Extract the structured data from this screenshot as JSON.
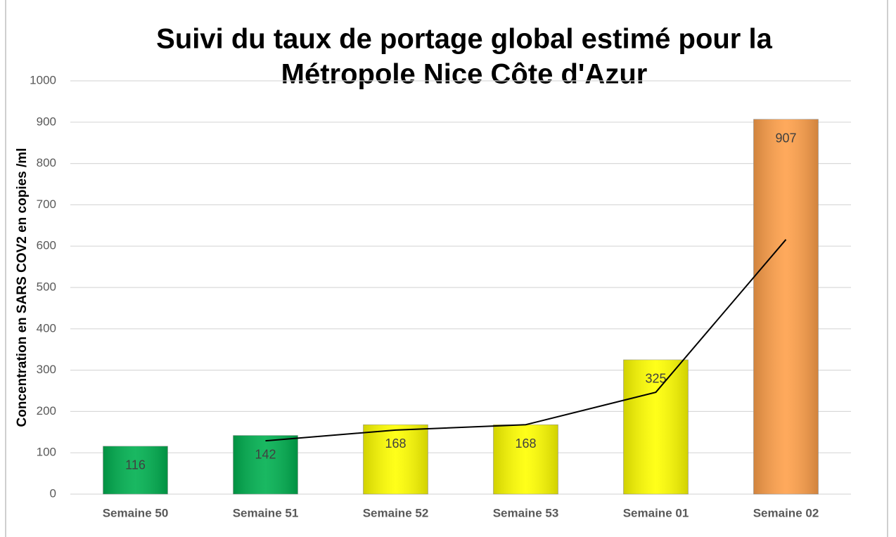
{
  "chart_data": {
    "type": "bar",
    "title": [
      "Suivi du taux de portage global estimé pour la",
      "Métropole Nice Côte d'Azur"
    ],
    "y_label": "Concentration en SARS COV2 en copies /ml",
    "categories": [
      "Semaine  50",
      "Semaine  51",
      "Semaine  52",
      "Semaine  53",
      "Semaine 01",
      "Semaine 02"
    ],
    "values": [
      116,
      142,
      168,
      168,
      325,
      907
    ],
    "colors": [
      "#00b050",
      "#00b050",
      "#ffff00",
      "#ffff00",
      "#ffff00",
      "#ffa04a"
    ],
    "trend": {
      "values": [
        null,
        129,
        155,
        168,
        246.5,
        616
      ],
      "color": "#000000"
    },
    "ylim": [
      0,
      1000
    ],
    "yticks": [
      0,
      100,
      200,
      300,
      400,
      500,
      600,
      700,
      800,
      900,
      1000
    ],
    "grid": true
  }
}
